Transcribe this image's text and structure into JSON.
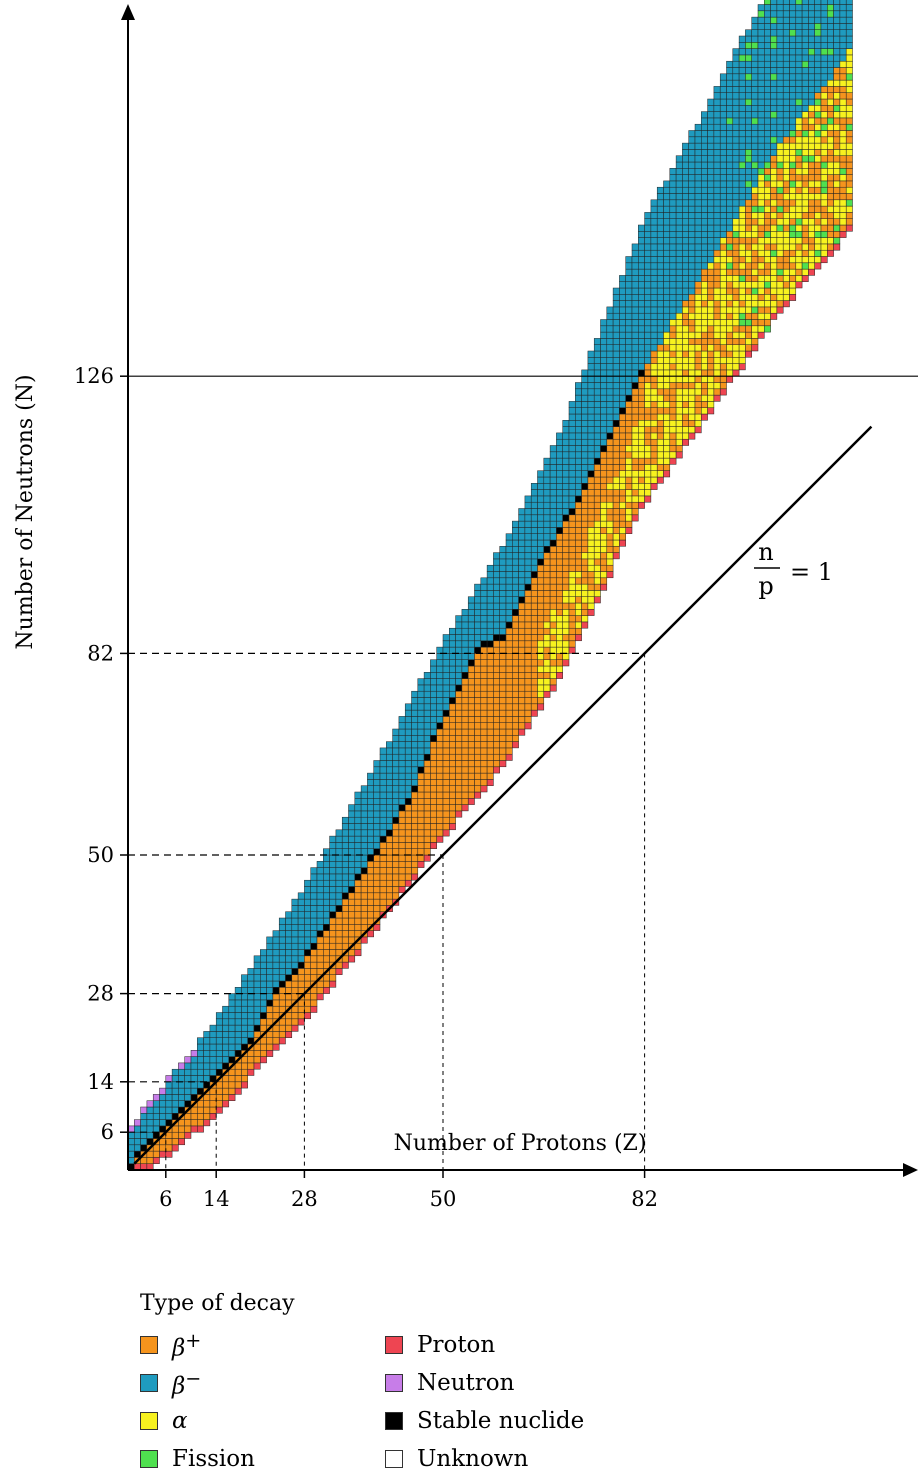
{
  "chart_data": {
    "type": "heatmap",
    "title": "",
    "xlabel": "Number of Protons (Z)",
    "ylabel": "Number of Neutrons (N)",
    "x_ticks": [
      6,
      14,
      28,
      50,
      82
    ],
    "y_ticks": [
      6,
      14,
      28,
      50,
      82,
      126
    ],
    "xlim": [
      0,
      118
    ],
    "ylim": [
      0,
      177
    ],
    "reference_line": {
      "label_numerator": "n",
      "label_denominator": "p",
      "label_rhs": "= 1",
      "slope": 1
    },
    "magic_numbers": [
      6,
      14,
      28,
      50,
      82,
      126
    ],
    "band_description": "Known nuclides: stable valley (black) flanked by beta-minus (neutron-rich) and beta-plus (proton-rich) regions; alpha and fission dominate at high Z",
    "band_center_N": [
      [
        1,
        1
      ],
      [
        6,
        6
      ],
      [
        14,
        14
      ],
      [
        20,
        22
      ],
      [
        28,
        32
      ],
      [
        40,
        50
      ],
      [
        50,
        66
      ],
      [
        60,
        80
      ],
      [
        70,
        98
      ],
      [
        82,
        126
      ],
      [
        92,
        142
      ],
      [
        104,
        162
      ],
      [
        115,
        177
      ]
    ],
    "stable_line": [
      [
        1,
        0
      ],
      [
        2,
        2
      ],
      [
        6,
        6
      ],
      [
        8,
        8
      ],
      [
        14,
        14
      ],
      [
        20,
        20
      ],
      [
        24,
        28
      ],
      [
        28,
        32
      ],
      [
        33,
        40
      ],
      [
        40,
        50
      ],
      [
        46,
        60
      ],
      [
        50,
        70
      ],
      [
        56,
        82
      ],
      [
        60,
        84
      ],
      [
        66,
        96
      ],
      [
        72,
        106
      ],
      [
        78,
        118
      ],
      [
        82,
        126
      ]
    ]
  },
  "legend": {
    "title": "Type of decay",
    "items": [
      {
        "label": "+",
        "greek": "β",
        "color": "#f5941d",
        "key": "beta-plus"
      },
      {
        "label": "Proton",
        "greek": "",
        "color": "#ee4552",
        "key": "proton"
      },
      {
        "label": "−",
        "greek": "β",
        "color": "#1f9bbf",
        "key": "beta-minus"
      },
      {
        "label": "Neutron",
        "greek": "",
        "color": "#c77de8",
        "key": "neutron"
      },
      {
        "label": "",
        "greek": "α",
        "color": "#f7f21f",
        "key": "alpha"
      },
      {
        "label": "Stable nuclide",
        "greek": "",
        "color": "#000000",
        "key": "stable"
      },
      {
        "label": "Fission",
        "greek": "",
        "color": "#4fe04f",
        "key": "fission"
      },
      {
        "label": "Unknown",
        "greek": "",
        "color": "#ffffff",
        "key": "unknown"
      }
    ]
  },
  "colors": {
    "beta_plus": "#f5941d",
    "beta_minus": "#1f9bbf",
    "alpha": "#f7f21f",
    "fission": "#4fe04f",
    "proton": "#ee4552",
    "neutron": "#c77de8",
    "stable": "#000000"
  }
}
